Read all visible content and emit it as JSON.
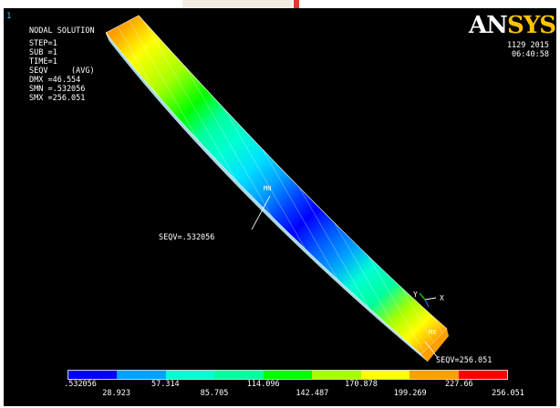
{
  "window": {
    "number": "1"
  },
  "info": {
    "title": "NODAL SOLUTION",
    "lines": [
      "STEP=1",
      "SUB =1",
      "TIME=1",
      "SEQV     (AVG)",
      "DMX =46.554",
      "SMN =.532056",
      "SMX =256.051"
    ]
  },
  "logo": {
    "part1": "AN",
    "part2": "SYS"
  },
  "datetime": {
    "date": "1129 2015",
    "time": "06:40:58"
  },
  "triad": {
    "x_label": "X",
    "y_label": "Y"
  },
  "markers": {
    "mn": "MN",
    "mx": "MX"
  },
  "annotations": {
    "min": "SEQV=.532056",
    "max": "SEQV=256.051"
  },
  "legend": {
    "colors": [
      "#0000ff",
      "#00a2ff",
      "#00ffd2",
      "#00ff9e",
      "#00ff00",
      "#a6ff00",
      "#ffff00",
      "#ffa000",
      "#ff0000"
    ],
    "top_values": [
      ".532056",
      "57.314",
      "114.096",
      "170.878",
      "227.66"
    ],
    "bottom_values": [
      "28.923",
      "85.705",
      "142.487",
      "199.269",
      "256.051"
    ]
  },
  "accent_colors": {
    "window_number": "#38c7e8",
    "logo_yellow": "#ffc400",
    "background": "#000000"
  }
}
